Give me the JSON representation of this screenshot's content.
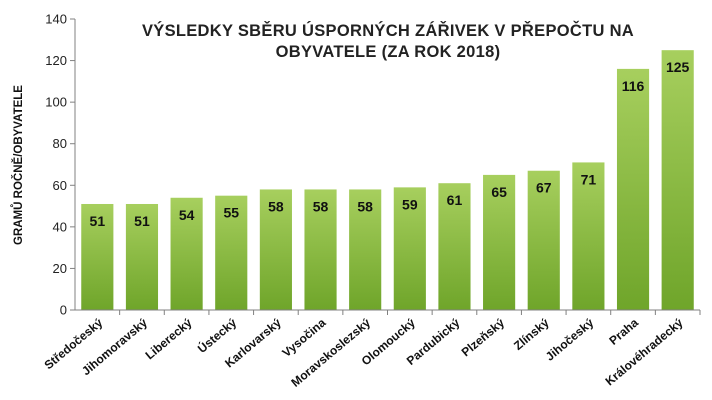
{
  "chart_data": {
    "type": "bar",
    "title_lines": [
      "VÝSLEDKY SBĚRU ÚSPORNÝCH ZÁŘIVEK V PŘEPOČTU  NA",
      "OBYVATELE (ZA ROK 2018)"
    ],
    "xlabel": "",
    "ylabel": "GRAMŮ ROČNĚ/OBYVATELE",
    "ylim": [
      0,
      140
    ],
    "yticks": [
      0,
      20,
      40,
      60,
      80,
      100,
      120,
      140
    ],
    "grid": false,
    "legend": "none",
    "categories": [
      "Středočeský",
      "Jihomoravský",
      "Liberecký",
      "Ústecký",
      "Karlovarský",
      "Vysočina",
      "Moravskoslezský",
      "Olomoucký",
      "Pardubický",
      "Plzeňský",
      "Zlínský",
      "Jihočeský",
      "Praha",
      "Královéhradecký"
    ],
    "values": [
      51,
      51,
      54,
      55,
      58,
      58,
      58,
      59,
      61,
      65,
      67,
      71,
      116,
      125
    ],
    "data_labels": [
      "51",
      "51",
      "54",
      "55",
      "58",
      "58",
      "58",
      "59",
      "61",
      "65",
      "67",
      "71",
      "116",
      "125"
    ]
  },
  "colors": {
    "bar_top": "#a7cf5e",
    "bar_bottom": "#6fa52a",
    "axis": "#808080"
  }
}
